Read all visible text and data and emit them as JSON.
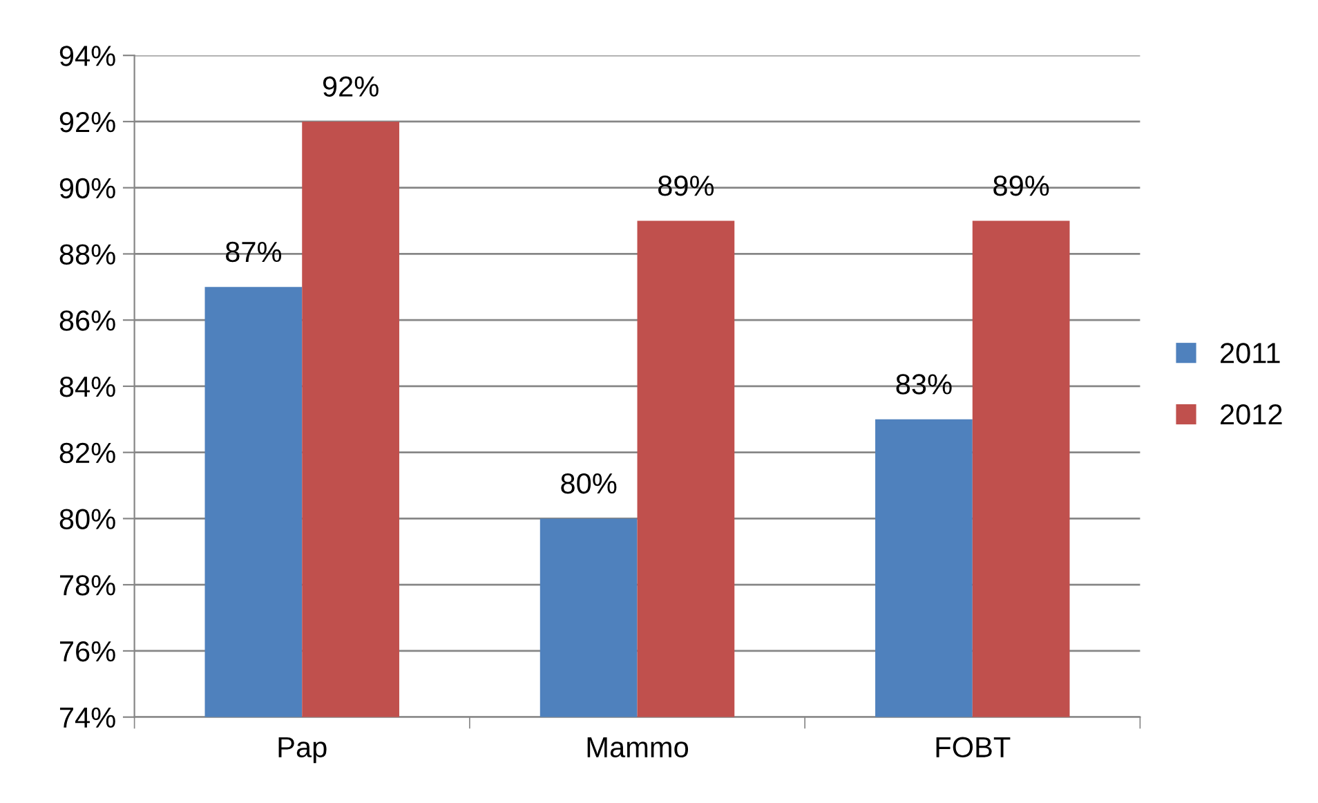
{
  "chart_data": {
    "type": "bar",
    "categories": [
      "Pap",
      "Mammo",
      "FOBT"
    ],
    "series": [
      {
        "name": "2011",
        "color": "#4f81bd",
        "values": [
          87,
          80,
          83
        ],
        "value_labels": [
          "87%",
          "80%",
          "83%"
        ]
      },
      {
        "name": "2012",
        "color": "#c0504d",
        "values": [
          92,
          89,
          89
        ],
        "value_labels": [
          "92%",
          "89%",
          "89%"
        ]
      }
    ],
    "ylim": [
      74,
      94
    ],
    "yticks": [
      {
        "value": 74,
        "label": "74%"
      },
      {
        "value": 76,
        "label": "76%"
      },
      {
        "value": 78,
        "label": "78%"
      },
      {
        "value": 80,
        "label": "80%"
      },
      {
        "value": 82,
        "label": "82%"
      },
      {
        "value": 84,
        "label": "84%"
      },
      {
        "value": 86,
        "label": "86%"
      },
      {
        "value": 88,
        "label": "88%"
      },
      {
        "value": 90,
        "label": "90%"
      },
      {
        "value": 92,
        "label": "92%"
      },
      {
        "value": 94,
        "label": "94%"
      }
    ],
    "grid": "y",
    "legend": "right"
  }
}
